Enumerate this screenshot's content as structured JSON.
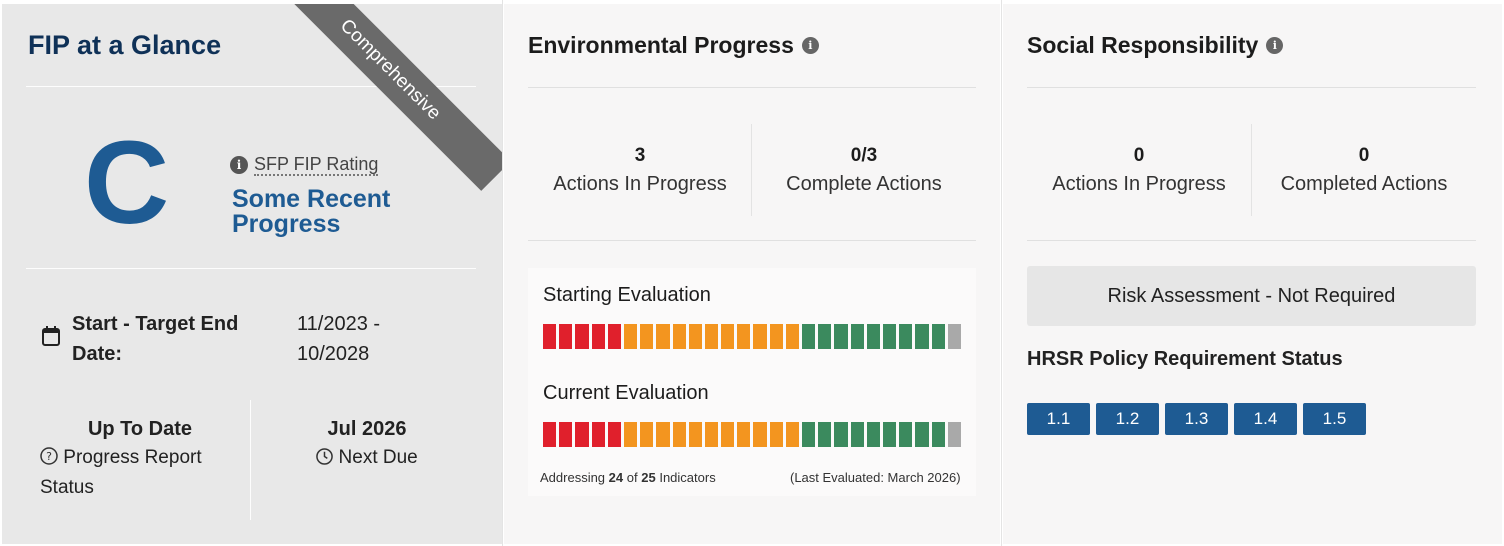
{
  "glance": {
    "title": "FIP at a Glance",
    "ribbon": "Comprehensive",
    "grade": "C",
    "rating_label": "SFP FIP Rating",
    "rating_desc": "Some Recent Progress",
    "date_label": "Start - Target End Date:",
    "date_value": "11/2023 - 10/2028",
    "report_status": "Up To Date",
    "report_label": "Progress Report Status",
    "next_due": "Jul 2026",
    "next_due_label": "Next Due"
  },
  "environmental": {
    "title": "Environmental Progress",
    "actions_in_progress": "3",
    "actions_in_progress_label": "Actions In Progress",
    "complete_actions": "0/3",
    "complete_actions_label": "Complete Actions",
    "starting_label": "Starting Evaluation",
    "current_label": "Current Evaluation",
    "starting_bar": [
      "red",
      "red",
      "red",
      "red",
      "red",
      "orange",
      "orange",
      "orange",
      "orange",
      "orange",
      "orange",
      "orange",
      "orange",
      "orange",
      "orange",
      "orange",
      "green",
      "green",
      "green",
      "green",
      "green",
      "green",
      "green",
      "green",
      "green",
      "gray"
    ],
    "current_bar": [
      "red",
      "red",
      "red",
      "red",
      "red",
      "orange",
      "orange",
      "orange",
      "orange",
      "orange",
      "orange",
      "orange",
      "orange",
      "orange",
      "orange",
      "orange",
      "green",
      "green",
      "green",
      "green",
      "green",
      "green",
      "green",
      "green",
      "green",
      "gray"
    ],
    "addressing_prefix": "Addressing",
    "addressing_count": "24",
    "addressing_of": "of",
    "addressing_total": "25",
    "addressing_suffix": "Indicators",
    "last_evaluated": "(Last Evaluated: March 2026)"
  },
  "social": {
    "title": "Social Responsibility",
    "actions_in_progress": "0",
    "actions_in_progress_label": "Actions In Progress",
    "completed_actions": "0",
    "completed_actions_label": "Completed Actions",
    "risk_assessment": "Risk Assessment - Not Required",
    "hrsr_title": "HRSR Policy Requirement Status",
    "policies": [
      "1.1",
      "1.2",
      "1.3",
      "1.4",
      "1.5"
    ]
  },
  "colors": {
    "navy": "#0f3157",
    "brand_blue": "#1e5b93",
    "red": "#e0202c",
    "orange": "#f3951f",
    "green": "#3b8a5e",
    "gray": "#a9a9a9"
  }
}
